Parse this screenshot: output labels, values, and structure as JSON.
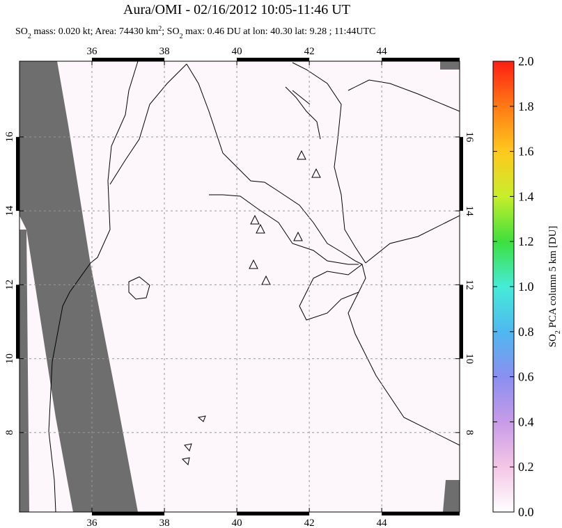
{
  "map": {
    "title": "Aura/OMI - 02/16/2012 10:05-11:46 UT",
    "subtitle": [
      "SO",
      "2",
      " mass: 0.020 kt; Area: 74430 km",
      "2",
      "; SO",
      "2",
      " max: 0.46 DU at lon: 40.30 lat: 9.28 ; 11:44UTC"
    ],
    "lon_range": [
      34,
      46.15
    ],
    "lat_range": [
      5.85,
      18.05
    ],
    "lon_ticks": [
      36,
      38,
      40,
      42,
      44
    ],
    "lat_ticks": [
      8,
      10,
      12,
      14,
      16
    ],
    "grid": true,
    "colorbar": {
      "label": [
        "SO",
        "2",
        " PCA column 5 km [DU]"
      ],
      "range": [
        0,
        2
      ],
      "ticks": [
        {
          "value": 0,
          "label": "0.0"
        },
        {
          "value": 0.2,
          "label": "0.2"
        },
        {
          "value": 0.4,
          "label": "0.4"
        },
        {
          "value": 0.6,
          "label": "0.6"
        },
        {
          "value": 0.8,
          "label": "0.8"
        },
        {
          "value": 1,
          "label": "1.0"
        },
        {
          "value": 1.2,
          "label": "1.2"
        },
        {
          "value": 1.4,
          "label": "1.4"
        },
        {
          "value": 1.6,
          "label": "1.6"
        },
        {
          "value": 1.8,
          "label": "1.8"
        },
        {
          "value": 2,
          "label": "2.0"
        }
      ],
      "colors": [
        "#ffffff",
        "#f4c6e6",
        "#c89be8",
        "#8a8ff0",
        "#4fb8f0",
        "#45ecd8",
        "#3de03d",
        "#c8ee2a",
        "#ffc81e",
        "#ff7a14",
        "#ff1e14"
      ]
    }
  }
}
